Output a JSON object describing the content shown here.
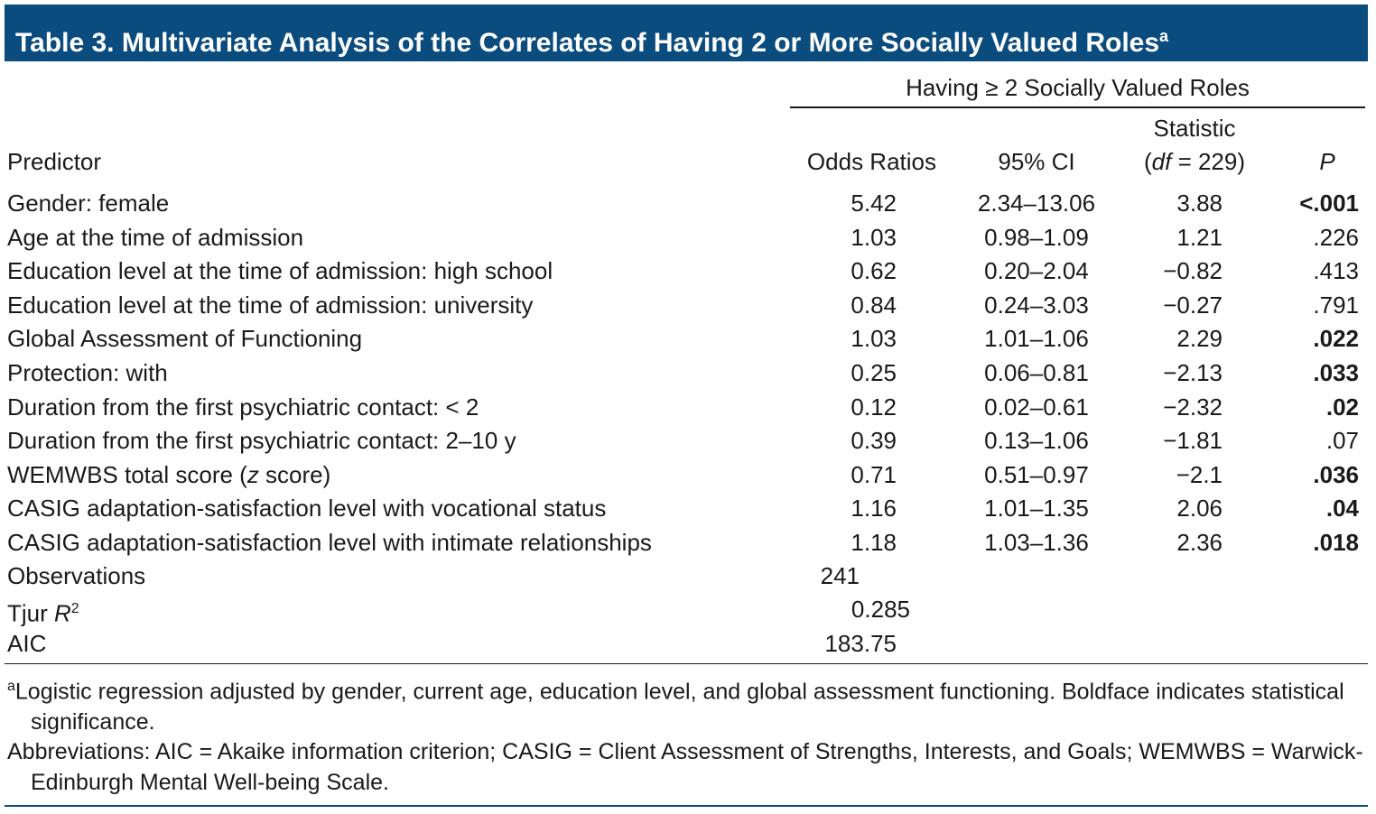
{
  "title": {
    "text": "Table 3. Multivariate Analysis of the Correlates of Having 2 or More Socially Valued Roles",
    "sup": "a"
  },
  "header": {
    "group": "Having ≥ 2 Socially Valued Roles",
    "predictor": "Predictor",
    "odds_ratios": "Odds Ratios",
    "ci": "95% CI",
    "statistic": "Statistic",
    "df_open": "(",
    "df_label": "df",
    "df_rest": " = 229)",
    "p": "P"
  },
  "rows": [
    {
      "predictor": "Gender: female",
      "odds_ratio": "5.42",
      "ci": "2.34–13.06",
      "statistic": "3.88",
      "p": "<.001",
      "significant": true
    },
    {
      "predictor": "Age at the time of admission",
      "odds_ratio": "1.03",
      "ci": "0.98–1.09",
      "statistic": "1.21",
      "p": ".226",
      "significant": false
    },
    {
      "predictor": "Education level at the time of admission: high school",
      "odds_ratio": "0.62",
      "ci": "0.20–2.04",
      "statistic": "−0.82",
      "p": ".413",
      "significant": false
    },
    {
      "predictor": "Education level at the time of admission: university",
      "odds_ratio": "0.84",
      "ci": "0.24–3.03",
      "statistic": "−0.27",
      "p": ".791",
      "significant": false
    },
    {
      "predictor": "Global Assessment of Functioning",
      "odds_ratio": "1.03",
      "ci": "1.01–1.06",
      "statistic": "2.29",
      "p": ".022",
      "significant": true
    },
    {
      "predictor": "Protection: with",
      "odds_ratio": "0.25",
      "ci": "0.06–0.81",
      "statistic": "−2.13",
      "p": ".033",
      "significant": true
    },
    {
      "predictor": "Duration from the first psychiatric contact: < 2",
      "odds_ratio": "0.12",
      "ci": "0.02–0.61",
      "statistic": "−2.32",
      "p": ".02",
      "significant": true
    },
    {
      "predictor": "Duration from the first psychiatric contact: 2–10 y",
      "odds_ratio": "0.39",
      "ci": "0.13–1.06",
      "statistic": "−1.81",
      "p": ".07",
      "significant": false
    },
    {
      "predictor": [
        "WEMWBS total score (",
        "z",
        " score)"
      ],
      "odds_ratio": "0.71",
      "ci": "0.51–0.97",
      "statistic": "−2.1",
      "p": ".036",
      "significant": true
    },
    {
      "predictor": "CASIG adaptation-satisfaction level with vocational status",
      "odds_ratio": "1.16",
      "ci": "1.01–1.35",
      "statistic": "2.06",
      "p": ".04",
      "significant": true
    },
    {
      "predictor": "CASIG adaptation-satisfaction level with intimate relationships",
      "odds_ratio": "1.18",
      "ci": "1.03–1.36",
      "statistic": "2.36",
      "p": ".018",
      "significant": true
    }
  ],
  "summary": {
    "observations": {
      "label": "Observations",
      "value": "241"
    },
    "tjur": {
      "label": "Tjur ",
      "label_italic": "R",
      "label_sup": "2",
      "value": "0.285"
    },
    "aic": {
      "label": "AIC",
      "value": "183.75"
    }
  },
  "footnotes": [
    {
      "sup": "a",
      "text": "Logistic regression adjusted by gender, current age, education level, and global assessment functioning. Boldface indicates statistical significance."
    },
    {
      "text": "Abbreviations: AIC = Akaike information criterion; CASIG = Client Assessment of Strengths, Interests, and Goals; WEMWBS = Warwick-Edinburgh Mental Well-being Scale."
    }
  ]
}
